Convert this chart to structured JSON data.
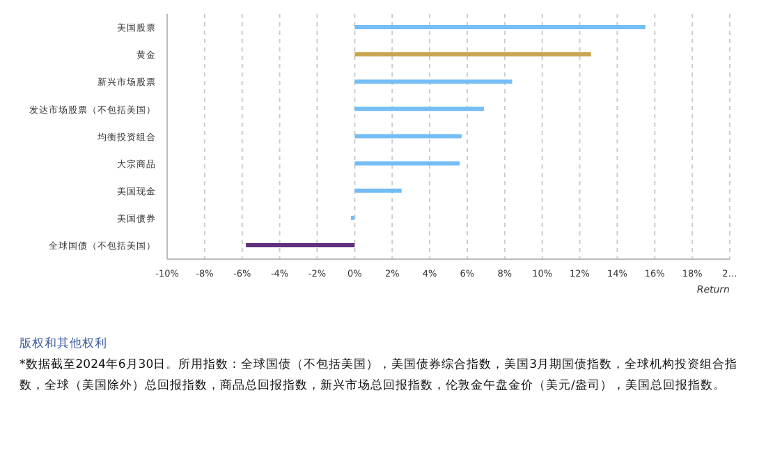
{
  "chart_data": {
    "type": "bar",
    "orientation": "horizontal",
    "categories": [
      "美国股票",
      "黄金",
      "新兴市场股票",
      "发达市场股票（不包括美国）",
      "均衡投资组合",
      "大宗商品",
      "美国现金",
      "美国债券",
      "全球国债（不包括美国）"
    ],
    "values": [
      15.5,
      12.6,
      8.4,
      6.9,
      5.7,
      5.6,
      2.5,
      -0.2,
      -5.8
    ],
    "colors": [
      "#74bdf5",
      "#c9a552",
      "#74bdf5",
      "#74bdf5",
      "#74bdf5",
      "#74bdf5",
      "#74bdf5",
      "#74bdf5",
      "#5e2f7d"
    ],
    "xlim": [
      -10,
      20
    ],
    "xticks": [
      {
        "value": -10,
        "label": "-10%"
      },
      {
        "value": -8,
        "label": "-8%"
      },
      {
        "value": -6,
        "label": "-6%"
      },
      {
        "value": -4,
        "label": "-4%"
      },
      {
        "value": -2,
        "label": "-2%"
      },
      {
        "value": 0,
        "label": "0%"
      },
      {
        "value": 2,
        "label": "2%"
      },
      {
        "value": 4,
        "label": "4%"
      },
      {
        "value": 6,
        "label": "6%"
      },
      {
        "value": 8,
        "label": "8%"
      },
      {
        "value": 10,
        "label": "10%"
      },
      {
        "value": 12,
        "label": "12%"
      },
      {
        "value": 14,
        "label": "14%"
      },
      {
        "value": 16,
        "label": "16%"
      },
      {
        "value": 18,
        "label": "18%"
      },
      {
        "value": 20,
        "label": "2…"
      }
    ],
    "xlabel": "Return",
    "grid": "x",
    "annotations": [
      "版权和其他权利",
      "*数据截至2024年6月30日。所用指数：全球国债（不包括美国），美国债券综合指数，美国3月期国债指数，全球机构投资组合指数，全球（美国除外）总回报指数，商品总回报指数，新兴市场总回报指数，伦敦金午盘金价（美元/盎司），美国总回报指数。"
    ]
  }
}
